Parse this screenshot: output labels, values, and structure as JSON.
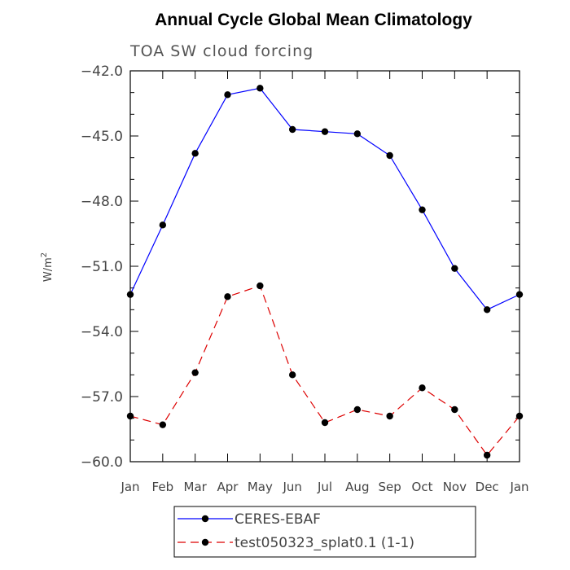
{
  "chart_data": {
    "type": "line",
    "title": "Annual Cycle Global Mean Climatology",
    "subtitle": "TOA SW cloud forcing",
    "ylabel": "W/m",
    "ylabel_superscript": "2",
    "ylim": [
      -60.0,
      -42.0
    ],
    "yticks": [
      -42.0,
      -45.0,
      -48.0,
      -51.0,
      -54.0,
      -57.0,
      -60.0
    ],
    "ytick_labels": [
      "−42.0",
      "−45.0",
      "−48.0",
      "−51.0",
      "−54.0",
      "−57.0",
      "−60.0"
    ],
    "categories": [
      "Jan",
      "Feb",
      "Mar",
      "Apr",
      "May",
      "Jun",
      "Jul",
      "Aug",
      "Sep",
      "Oct",
      "Nov",
      "Dec",
      "Jan"
    ],
    "grid": false,
    "legend_position": "bottom",
    "series": [
      {
        "name": "CERES-EBAF",
        "color": "#0000ff",
        "line_style": "solid",
        "values": [
          -52.3,
          -49.1,
          -45.8,
          -43.1,
          -42.8,
          -44.7,
          -44.8,
          -44.9,
          -45.9,
          -48.4,
          -51.1,
          -53.0,
          -52.3
        ]
      },
      {
        "name": "test050323_splat0.1 (1-1)",
        "color": "#dd0000",
        "line_style": "dashed",
        "values": [
          -57.9,
          -58.3,
          -55.9,
          -52.4,
          -51.9,
          -56.0,
          -58.2,
          -57.6,
          -57.9,
          -56.6,
          -57.6,
          -59.7,
          -57.9
        ]
      }
    ]
  }
}
